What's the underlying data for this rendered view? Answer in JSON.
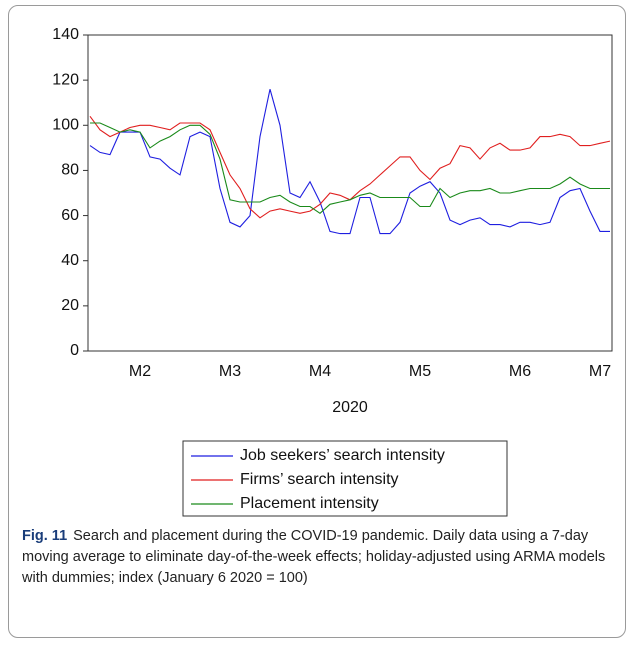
{
  "chart_data": {
    "type": "line",
    "categories": [
      null,
      null,
      null,
      null,
      null,
      "M2",
      null,
      null,
      null,
      null,
      null,
      null,
      null,
      null,
      "M3",
      null,
      null,
      null,
      null,
      null,
      null,
      null,
      null,
      "M4",
      null,
      null,
      null,
      null,
      null,
      null,
      null,
      null,
      null,
      "M5",
      null,
      null,
      null,
      null,
      null,
      null,
      null,
      null,
      null,
      "M6",
      null,
      null,
      null,
      null,
      null,
      null,
      null,
      "M7",
      null
    ],
    "xlabel": "2020",
    "ylim": [
      0,
      140
    ],
    "yticks": [
      0,
      20,
      40,
      60,
      80,
      100,
      120,
      140
    ],
    "legend": "bottom",
    "series": [
      {
        "name": "Job seekers’ search intensity",
        "color": "#1f1fe0",
        "values": [
          91,
          88,
          87,
          97,
          97,
          97,
          86,
          85,
          81,
          78,
          95,
          97,
          95,
          72,
          57,
          55,
          60,
          95,
          116,
          100,
          70,
          68,
          75,
          66,
          53,
          52,
          52,
          68,
          68,
          52,
          52,
          57,
          70,
          73,
          75,
          70,
          58,
          56,
          58,
          59,
          56,
          56,
          55,
          57,
          57,
          56,
          57,
          68,
          71,
          72,
          62,
          53,
          53
        ]
      },
      {
        "name": "Firms’ search intensity",
        "color": "#e01f1f",
        "values": [
          104,
          98,
          95,
          97,
          99,
          100,
          100,
          99,
          98,
          101,
          101,
          101,
          98,
          88,
          78,
          72,
          63,
          59,
          62,
          63,
          62,
          61,
          62,
          65,
          70,
          69,
          67,
          71,
          74,
          78,
          82,
          86,
          86,
          80,
          76,
          81,
          83,
          91,
          90,
          85,
          90,
          92,
          89,
          89,
          90,
          95,
          95,
          96,
          95,
          91,
          91,
          92,
          93
        ]
      },
      {
        "name": "Placement intensity",
        "color": "#1a8a1a",
        "values": [
          101,
          101,
          99,
          97,
          98,
          97,
          90,
          93,
          95,
          98,
          100,
          100,
          96,
          85,
          67,
          66,
          66,
          66,
          68,
          69,
          66,
          64,
          64,
          61,
          65,
          66,
          67,
          69,
          70,
          68,
          68,
          68,
          68,
          64,
          64,
          72,
          68,
          70,
          71,
          71,
          72,
          70,
          70,
          71,
          72,
          72,
          72,
          74,
          77,
          74,
          72,
          72,
          72
        ]
      }
    ]
  },
  "caption": {
    "label": "Fig. 11",
    "text": "Search and placement during the COVID-19 pandemic. Daily data using a 7-day moving average to eliminate day-of-the-week effects; holiday-adjusted using ARMA models with dummies; index (January 6 2020 = 100)"
  }
}
